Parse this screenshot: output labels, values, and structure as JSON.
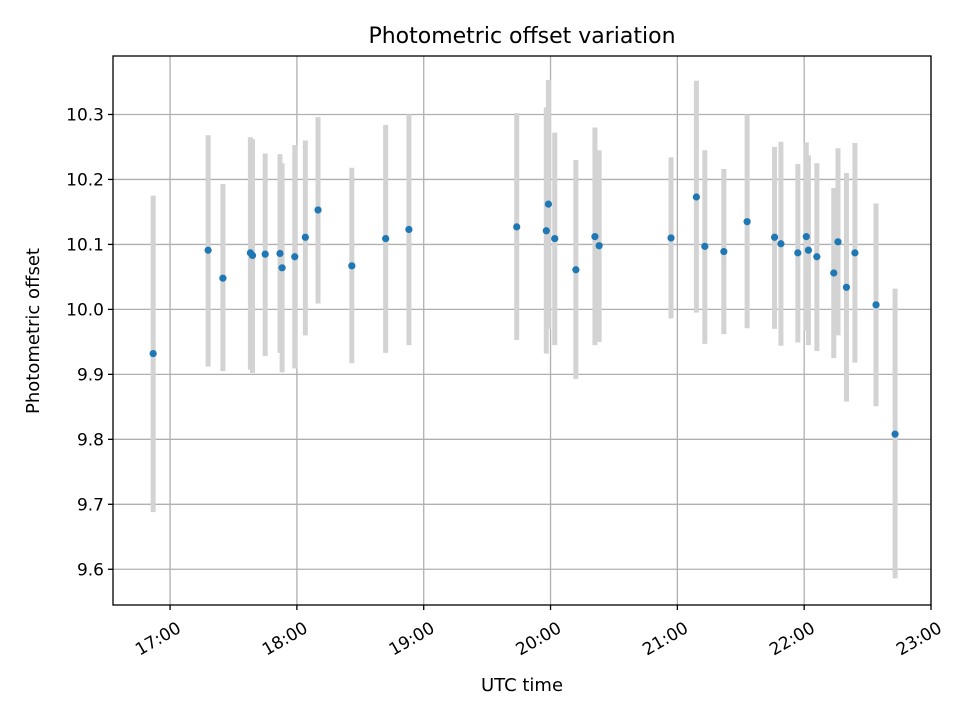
{
  "chart_data": {
    "type": "scatter",
    "title": "Photometric offset variation",
    "xlabel": "UTC time",
    "ylabel": "Photometric offset",
    "x_unit": "UTC time (HH:MM)",
    "xlim": [
      "16:33",
      "23:00"
    ],
    "ylim": [
      9.545,
      10.39
    ],
    "x_ticks": [
      "17:00",
      "18:00",
      "19:00",
      "20:00",
      "21:00",
      "22:00",
      "23:00"
    ],
    "y_ticks": [
      9.6,
      9.7,
      9.8,
      9.9,
      10.0,
      10.1,
      10.2,
      10.3
    ],
    "y_tick_labels": [
      "9.6",
      "9.7",
      "9.8",
      "9.9",
      "10.0",
      "10.1",
      "10.2",
      "10.3"
    ],
    "grid": true,
    "marker_color": "#1f77b4",
    "errorbar_color": "#d3d3d3",
    "points": [
      {
        "x": "16:52",
        "y": 9.932,
        "low": 9.688,
        "high": 10.175
      },
      {
        "x": "17:18",
        "y": 10.091,
        "low": 9.912,
        "high": 10.268
      },
      {
        "x": "17:25",
        "y": 10.048,
        "low": 9.905,
        "high": 10.193
      },
      {
        "x": "17:38",
        "y": 10.087,
        "low": 9.907,
        "high": 10.265
      },
      {
        "x": "17:39",
        "y": 10.083,
        "low": 9.902,
        "high": 10.262
      },
      {
        "x": "17:45",
        "y": 10.085,
        "low": 9.928,
        "high": 10.24
      },
      {
        "x": "17:52",
        "y": 10.086,
        "low": 9.933,
        "high": 10.239
      },
      {
        "x": "17:53",
        "y": 10.064,
        "low": 9.903,
        "high": 10.225
      },
      {
        "x": "17:59",
        "y": 10.081,
        "low": 9.909,
        "high": 10.253
      },
      {
        "x": "18:04",
        "y": 10.111,
        "low": 9.96,
        "high": 10.26
      },
      {
        "x": "18:10",
        "y": 10.153,
        "low": 10.009,
        "high": 10.296
      },
      {
        "x": "18:26",
        "y": 10.067,
        "low": 9.917,
        "high": 10.218
      },
      {
        "x": "18:42",
        "y": 10.109,
        "low": 9.933,
        "high": 10.284
      },
      {
        "x": "18:53",
        "y": 10.123,
        "low": 9.945,
        "high": 10.3
      },
      {
        "x": "19:44",
        "y": 10.127,
        "low": 9.953,
        "high": 10.302
      },
      {
        "x": "19:58",
        "y": 10.121,
        "low": 9.932,
        "high": 10.311
      },
      {
        "x": "19:59",
        "y": 10.162,
        "low": 9.97,
        "high": 10.353
      },
      {
        "x": "20:02",
        "y": 10.109,
        "low": 9.945,
        "high": 10.272
      },
      {
        "x": "20:12",
        "y": 10.061,
        "low": 9.893,
        "high": 10.23
      },
      {
        "x": "20:21",
        "y": 10.112,
        "low": 9.945,
        "high": 10.28
      },
      {
        "x": "20:23",
        "y": 10.098,
        "low": 9.95,
        "high": 10.245
      },
      {
        "x": "20:57",
        "y": 10.11,
        "low": 9.986,
        "high": 10.234
      },
      {
        "x": "21:09",
        "y": 10.173,
        "low": 9.995,
        "high": 10.352
      },
      {
        "x": "21:13",
        "y": 10.097,
        "low": 9.947,
        "high": 10.245
      },
      {
        "x": "21:22",
        "y": 10.089,
        "low": 9.962,
        "high": 10.216
      },
      {
        "x": "21:33",
        "y": 10.135,
        "low": 9.971,
        "high": 10.3
      },
      {
        "x": "21:46",
        "y": 10.111,
        "low": 9.97,
        "high": 10.25
      },
      {
        "x": "21:49",
        "y": 10.101,
        "low": 9.944,
        "high": 10.258
      },
      {
        "x": "21:57",
        "y": 10.087,
        "low": 9.949,
        "high": 10.224
      },
      {
        "x": "22:01",
        "y": 10.112,
        "low": 9.967,
        "high": 10.257
      },
      {
        "x": "22:02",
        "y": 10.091,
        "low": 9.945,
        "high": 10.237
      },
      {
        "x": "22:06",
        "y": 10.081,
        "low": 9.936,
        "high": 10.225
      },
      {
        "x": "22:14",
        "y": 10.056,
        "low": 9.925,
        "high": 10.187
      },
      {
        "x": "22:16",
        "y": 10.104,
        "low": 9.96,
        "high": 10.248
      },
      {
        "x": "22:20",
        "y": 10.034,
        "low": 9.858,
        "high": 10.21
      },
      {
        "x": "22:24",
        "y": 10.087,
        "low": 9.918,
        "high": 10.256
      },
      {
        "x": "22:34",
        "y": 10.007,
        "low": 9.851,
        "high": 10.163
      },
      {
        "x": "22:43",
        "y": 9.808,
        "low": 9.586,
        "high": 10.032
      }
    ]
  }
}
